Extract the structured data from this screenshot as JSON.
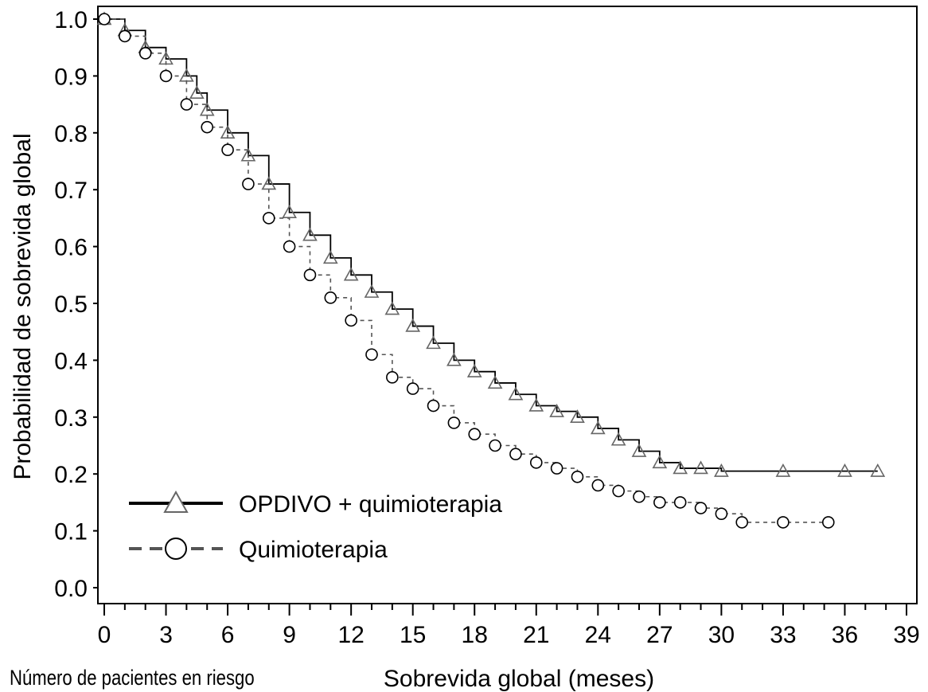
{
  "chart_data": {
    "type": "line",
    "xlabel": "Sobrevida global (meses)",
    "ylabel": "Probabilidad de sobrevida global",
    "xlim": [
      0,
      39
    ],
    "ylim": [
      0,
      1.0
    ],
    "x_ticks": [
      0,
      3,
      6,
      9,
      12,
      15,
      18,
      21,
      24,
      27,
      30,
      33,
      36,
      39
    ],
    "x_tick_labels": [
      "0",
      "3",
      "6",
      "9",
      "12",
      "15",
      "18",
      "21",
      "24",
      "27",
      "30",
      "33",
      "36",
      "39"
    ],
    "y_ticks": [
      0.0,
      0.1,
      0.2,
      0.3,
      0.4,
      0.5,
      0.6,
      0.7,
      0.8,
      0.9,
      1.0
    ],
    "y_tick_labels": [
      "0.0",
      "0.1",
      "0.2",
      "0.3",
      "0.4",
      "0.5",
      "0.6",
      "0.7",
      "0.8",
      "0.9",
      "1.0"
    ],
    "grid": false,
    "legend_position": "bottom-left",
    "series": [
      {
        "name": "OPDIVO + quimioterapia",
        "line_style": "solid",
        "marker": "triangle",
        "color": "#000000",
        "marker_color": "#666666",
        "x": [
          0,
          1,
          2,
          3,
          4,
          4.5,
          5,
          6,
          7,
          8,
          9,
          10,
          11,
          12,
          13,
          14,
          15,
          16,
          17,
          18,
          19,
          20,
          21,
          22,
          23,
          24,
          25,
          26,
          27,
          28,
          29,
          30,
          33,
          36,
          37.6
        ],
        "y": [
          1.0,
          0.98,
          0.95,
          0.93,
          0.9,
          0.87,
          0.84,
          0.8,
          0.76,
          0.71,
          0.66,
          0.62,
          0.58,
          0.55,
          0.52,
          0.49,
          0.46,
          0.43,
          0.4,
          0.38,
          0.36,
          0.34,
          0.32,
          0.31,
          0.3,
          0.28,
          0.26,
          0.24,
          0.22,
          0.21,
          0.21,
          0.205,
          0.205,
          0.205,
          0.205
        ]
      },
      {
        "name": "Quimioterapia",
        "line_style": "dashed",
        "marker": "circle",
        "color": "#555555",
        "marker_color": "#000000",
        "x": [
          0,
          1,
          2,
          3,
          4,
          5,
          6,
          7,
          8,
          9,
          10,
          11,
          12,
          13,
          14,
          15,
          16,
          17,
          18,
          19,
          20,
          21,
          22,
          23,
          24,
          25,
          26,
          27,
          28,
          29,
          30,
          31,
          33,
          35.2
        ],
        "y": [
          1.0,
          0.97,
          0.94,
          0.9,
          0.85,
          0.81,
          0.77,
          0.71,
          0.65,
          0.6,
          0.55,
          0.51,
          0.47,
          0.41,
          0.37,
          0.35,
          0.32,
          0.29,
          0.27,
          0.25,
          0.235,
          0.22,
          0.21,
          0.195,
          0.18,
          0.17,
          0.16,
          0.15,
          0.15,
          0.14,
          0.13,
          0.115,
          0.115,
          0.115
        ]
      }
    ]
  },
  "footer_note": "Número de pacientes en riesgo"
}
